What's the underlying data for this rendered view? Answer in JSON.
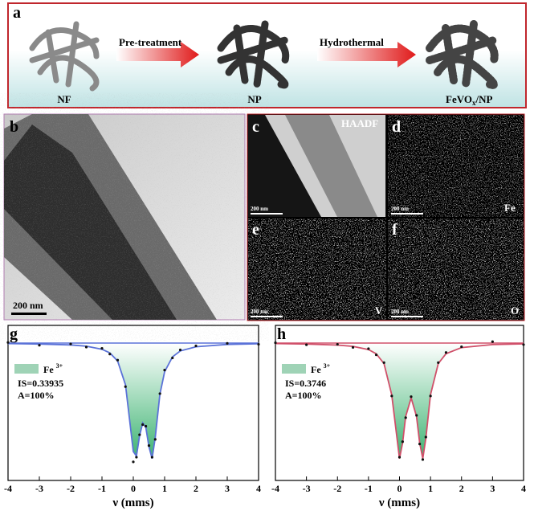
{
  "panel_a": {
    "letter": "a",
    "nf": "NF",
    "step1": "Pre-treatment",
    "np": "NP",
    "step2": "Hydrothermal",
    "product": {
      "main": "FeVO",
      "sub": "x",
      "rest": "/NP"
    }
  },
  "panel_b": {
    "letter": "b",
    "scale": "200 nm"
  },
  "panel_c": {
    "letter": "c",
    "label": "HAADF",
    "scale": "200 nm"
  },
  "panel_d": {
    "letter": "d",
    "element": "Fe",
    "scale": "200 nm"
  },
  "panel_e": {
    "letter": "e",
    "element": "V",
    "scale": "200 nm"
  },
  "panel_f": {
    "letter": "f",
    "element": "O",
    "scale": "200 nm"
  },
  "chart_data": [
    {
      "type": "line",
      "letter": "g",
      "xlabel": "ν (mms)",
      "xlim": [
        -4,
        4
      ],
      "xticks": [
        -4,
        -3,
        -2,
        -1,
        0,
        1,
        2,
        3,
        4
      ],
      "ylim": [
        0,
        1
      ],
      "baseline": 0.886,
      "legend_label": {
        "text": "Fe",
        "sup": "3+"
      },
      "annotations": [
        "IS=0.33935",
        "A=100%"
      ],
      "x": [
        -4,
        -3,
        -2,
        -1.5,
        -1,
        -0.75,
        -0.5,
        -0.25,
        0,
        0.1,
        0.2,
        0.3,
        0.4,
        0.5,
        0.6,
        0.7,
        0.85,
        1,
        1.25,
        1.5,
        2,
        3,
        4
      ],
      "series": [
        {
          "role": "fit",
          "color": "#5b72d8",
          "values": [
            0.883,
            0.88,
            0.874,
            0.866,
            0.846,
            0.823,
            0.77,
            0.616,
            0.186,
            0.157,
            0.287,
            0.371,
            0.342,
            0.217,
            0.141,
            0.276,
            0.555,
            0.701,
            0.797,
            0.835,
            0.862,
            0.877,
            0.882
          ]
        },
        {
          "role": "data",
          "color": "#111111",
          "values": [
            0.89,
            0.872,
            0.88,
            0.86,
            0.852,
            0.815,
            0.776,
            0.605,
            0.12,
            0.15,
            0.295,
            0.36,
            0.35,
            0.225,
            0.15,
            0.265,
            0.56,
            0.712,
            0.79,
            0.842,
            0.868,
            0.884,
            0.878
          ]
        }
      ]
    },
    {
      "type": "line",
      "letter": "h",
      "xlabel": "ν (mms)",
      "xlim": [
        -4,
        4
      ],
      "xticks": [
        -4,
        -3,
        -2,
        -1,
        0,
        1,
        2,
        3,
        4
      ],
      "ylim": [
        0,
        1
      ],
      "baseline": 0.886,
      "legend_label": {
        "text": "Fe",
        "sup": "3+"
      },
      "annotations": [
        "IS=0.3746",
        "A=100%"
      ],
      "x": [
        -4,
        -3,
        -2,
        -1.5,
        -1,
        -0.75,
        -0.5,
        -0.25,
        0,
        0.1,
        0.2,
        0.375,
        0.55,
        0.65,
        0.75,
        0.85,
        1,
        1.25,
        1.5,
        2,
        3,
        4
      ],
      "series": [
        {
          "role": "fit",
          "color": "#d0506a",
          "values": [
            0.883,
            0.88,
            0.873,
            0.865,
            0.844,
            0.817,
            0.754,
            0.553,
            0.141,
            0.243,
            0.413,
            0.532,
            0.413,
            0.243,
            0.141,
            0.271,
            0.553,
            0.754,
            0.817,
            0.857,
            0.876,
            0.881
          ]
        },
        {
          "role": "data",
          "color": "#111111",
          "values": [
            0.888,
            0.875,
            0.878,
            0.858,
            0.85,
            0.81,
            0.76,
            0.545,
            0.15,
            0.25,
            0.405,
            0.54,
            0.42,
            0.235,
            0.135,
            0.28,
            0.545,
            0.76,
            0.825,
            0.862,
            0.895,
            0.876
          ]
        }
      ]
    }
  ]
}
